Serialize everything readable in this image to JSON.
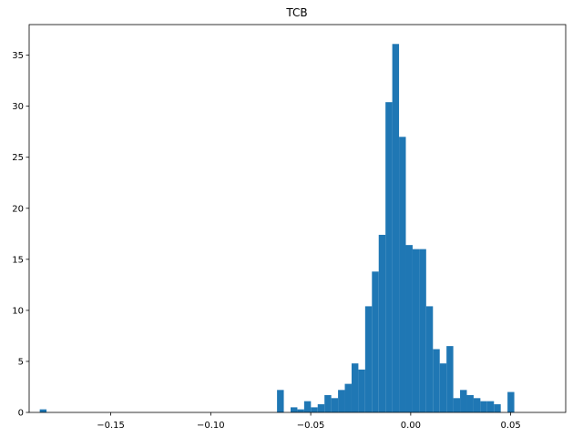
{
  "chart_data": {
    "type": "bar",
    "title": "TCB",
    "xlabel": "",
    "ylabel": "",
    "xlim": [
      -0.1908,
      0.0775
    ],
    "ylim": [
      0,
      38
    ],
    "grid": false,
    "bar_color": "#1f77b4",
    "x_ticks": [
      -0.15,
      -0.1,
      -0.05,
      0.0,
      0.05
    ],
    "x_tick_labels": [
      "−0.15",
      "−0.10",
      "−0.05",
      "0.00",
      "0.05"
    ],
    "y_ticks": [
      0,
      5,
      10,
      15,
      20,
      25,
      30,
      35
    ],
    "y_tick_labels": [
      "0",
      "5",
      "10",
      "15",
      "20",
      "25",
      "30",
      "35"
    ],
    "bin_start": -0.1855,
    "bin_width": 0.00339,
    "values": [
      0.3,
      0,
      0,
      0,
      0,
      0,
      0,
      0,
      0,
      0,
      0,
      0,
      0,
      0,
      0,
      0,
      0,
      0,
      0,
      0,
      0,
      0,
      0,
      0,
      0,
      0,
      0,
      0,
      0,
      0,
      0,
      0,
      0,
      0,
      0,
      2.2,
      0,
      0.5,
      0.3,
      1.1,
      0.5,
      0.8,
      1.7,
      1.4,
      2.2,
      2.8,
      4.8,
      4.2,
      10.4,
      13.8,
      17.4,
      30.4,
      36.1,
      27.0,
      16.4,
      16.0,
      16.0,
      10.4,
      6.2,
      4.8,
      6.5,
      1.4,
      2.2,
      1.7,
      1.4,
      1.1,
      1.1,
      0.8,
      0,
      2.0
    ]
  }
}
